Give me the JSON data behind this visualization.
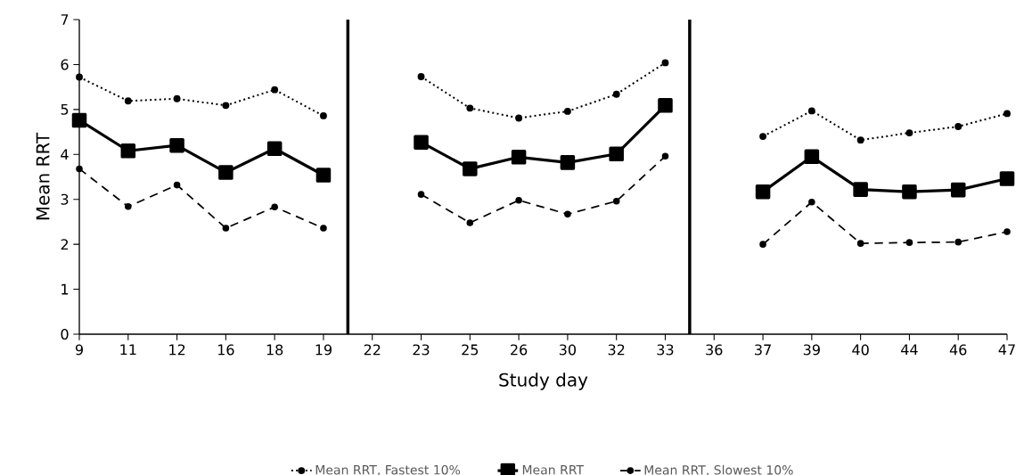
{
  "chart_data": {
    "type": "line",
    "xlabel": "Study day",
    "ylabel": "Mean RRT",
    "categories": [
      "9",
      "11",
      "12",
      "16",
      "18",
      "19",
      "22",
      "23",
      "25",
      "26",
      "30",
      "32",
      "33",
      "36",
      "37",
      "39",
      "40",
      "44",
      "46",
      "47"
    ],
    "series": [
      {
        "name": "Mean RRT, Fastest 10%",
        "color": "#000000",
        "marker": "circle",
        "line_style": "dotted",
        "values": [
          5.72,
          5.19,
          5.24,
          5.09,
          5.44,
          4.86,
          null,
          5.73,
          5.03,
          4.81,
          4.96,
          5.34,
          6.04,
          null,
          4.4,
          4.97,
          4.32,
          4.48,
          4.62,
          4.91
        ]
      },
      {
        "name": "Mean RRT",
        "color": "#000000",
        "marker": "square",
        "line_style": "solid",
        "values": [
          4.76,
          4.08,
          4.2,
          3.6,
          4.13,
          3.54,
          null,
          4.27,
          3.68,
          3.94,
          3.82,
          4.01,
          5.09,
          null,
          3.17,
          3.95,
          3.22,
          3.17,
          3.21,
          3.46
        ]
      },
      {
        "name": "Mean RRT, Slowest 10%",
        "color": "#000000",
        "marker": "circle",
        "line_style": "dashed",
        "values": [
          3.68,
          2.84,
          3.32,
          2.36,
          2.83,
          2.36,
          null,
          3.11,
          2.48,
          2.98,
          2.67,
          2.96,
          3.96,
          null,
          2.0,
          2.94,
          2.02,
          2.04,
          2.05,
          2.28
        ]
      }
    ],
    "ylim": [
      0,
      7
    ],
    "yticks": [
      0,
      1,
      2,
      3,
      4,
      5,
      6,
      7
    ],
    "grid": false,
    "legend": "bottom"
  }
}
